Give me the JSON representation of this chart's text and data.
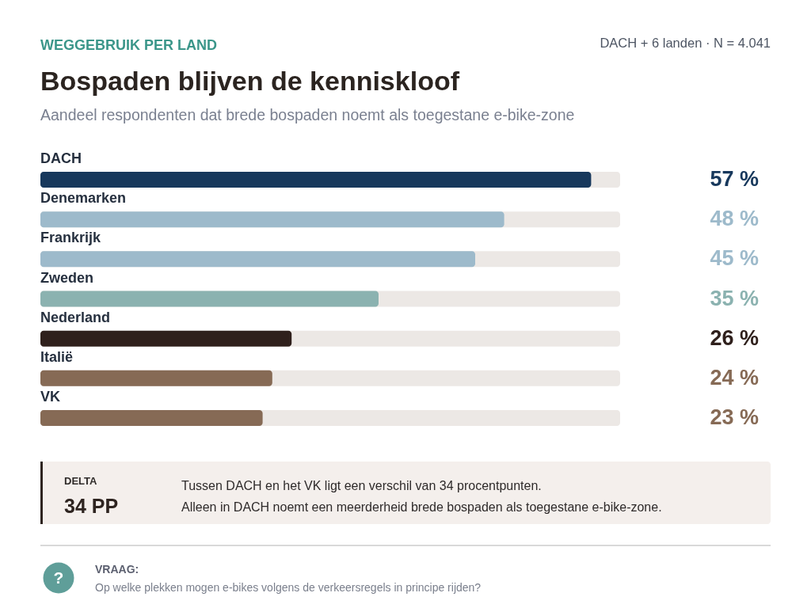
{
  "chart_data": {
    "type": "bar",
    "orientation": "horizontal",
    "title": "Bospaden blijven de kenniskloof",
    "subtitle": "Aandeel respondenten dat brede bospaden noemt als toegestane e-bike-zone",
    "categories": [
      "DACH",
      "Denemarken",
      "Frankrijk",
      "Zweden",
      "Nederland",
      "Italië",
      "VK"
    ],
    "values": [
      57,
      48,
      45,
      35,
      26,
      24,
      23
    ],
    "colors": [
      "#17385c",
      "#9dbacb",
      "#9dbacb",
      "#8bb2b0",
      "#2f201c",
      "#866a55",
      "#866a55"
    ],
    "value_labels": [
      "57 %",
      "48 %",
      "45 %",
      "35 %",
      "26 %",
      "24 %",
      "23 %"
    ],
    "xlim": [
      0,
      60
    ],
    "tick_labels": "y",
    "annotations": [
      "WEGGEBRUIK PER LAND",
      "DACH + 6 landen · N = 4.041",
      "DELTA",
      "34 PP",
      "Tussen DACH en het VK ligt een verschil van 34 procentpunten.",
      "Alleen in DACH noemt een meerderheid brede bospaden als toegestane e-bike-zone.",
      "VRAAG:",
      "Op welke plekken mogen e-bikes volgens de verkeersregels in principe rijden?",
      "?"
    ]
  }
}
